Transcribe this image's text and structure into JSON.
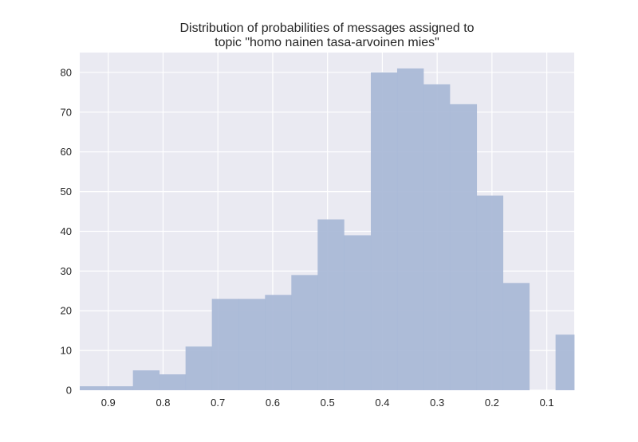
{
  "chart_data": {
    "type": "bar",
    "title_lines": [
      "Distribution of probabilities of messages assigned to",
      "topic \"homo nainen tasa-arvoinen mies\""
    ],
    "xlabel": "",
    "ylabel": "",
    "x_axis_reversed": true,
    "xlim": [
      0.952,
      0.05
    ],
    "ylim": [
      0,
      85
    ],
    "x_ticks": [
      0.9,
      0.8,
      0.7,
      0.6,
      0.5,
      0.4,
      0.3,
      0.2,
      0.1
    ],
    "x_tick_labels": [
      "0.9",
      "0.8",
      "0.7",
      "0.6",
      "0.5",
      "0.4",
      "0.3",
      "0.2",
      "0.1"
    ],
    "y_ticks": [
      0,
      10,
      20,
      30,
      40,
      50,
      60,
      70,
      80
    ],
    "y_tick_labels": [
      "0",
      "10",
      "20",
      "30",
      "40",
      "50",
      "60",
      "70",
      "80"
    ],
    "grid": true,
    "bar_color": "#a7b7d6",
    "background_color": "#eaeaf2",
    "bins": [
      {
        "x_start": 0.952,
        "x_end": 0.904,
        "count": 1
      },
      {
        "x_start": 0.904,
        "x_end": 0.855,
        "count": 1
      },
      {
        "x_start": 0.855,
        "x_end": 0.807,
        "count": 5
      },
      {
        "x_start": 0.807,
        "x_end": 0.759,
        "count": 4
      },
      {
        "x_start": 0.759,
        "x_end": 0.711,
        "count": 11
      },
      {
        "x_start": 0.711,
        "x_end": 0.662,
        "count": 23
      },
      {
        "x_start": 0.662,
        "x_end": 0.614,
        "count": 23
      },
      {
        "x_start": 0.614,
        "x_end": 0.566,
        "count": 24
      },
      {
        "x_start": 0.566,
        "x_end": 0.518,
        "count": 29
      },
      {
        "x_start": 0.518,
        "x_end": 0.47,
        "count": 43
      },
      {
        "x_start": 0.47,
        "x_end": 0.421,
        "count": 39
      },
      {
        "x_start": 0.421,
        "x_end": 0.373,
        "count": 80
      },
      {
        "x_start": 0.373,
        "x_end": 0.325,
        "count": 81
      },
      {
        "x_start": 0.325,
        "x_end": 0.277,
        "count": 77
      },
      {
        "x_start": 0.277,
        "x_end": 0.228,
        "count": 72
      },
      {
        "x_start": 0.228,
        "x_end": 0.18,
        "count": 49
      },
      {
        "x_start": 0.18,
        "x_end": 0.132,
        "count": 27
      },
      {
        "x_start": 0.132,
        "x_end": 0.084,
        "count": 0
      },
      {
        "x_start": 0.084,
        "x_end": 0.05,
        "count": 14
      }
    ]
  }
}
